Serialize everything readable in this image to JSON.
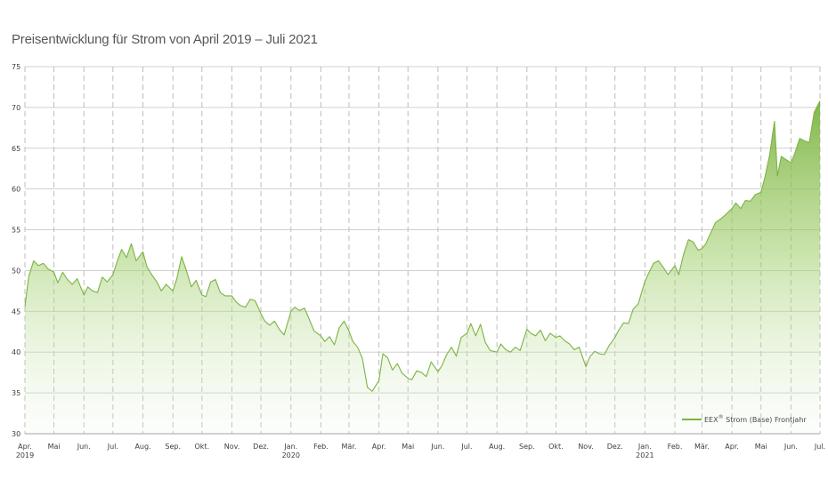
{
  "chart_data": {
    "type": "area",
    "title": "Preisentwicklung für Strom von April 2019 – Juli 2021",
    "ylim": [
      30,
      75
    ],
    "yticks": [
      30,
      35,
      40,
      45,
      50,
      55,
      60,
      65,
      70,
      75
    ],
    "x_range": [
      "2019-04",
      "2021-07"
    ],
    "xticks": [
      {
        "label": "Apr.",
        "year": "2019"
      },
      {
        "label": "Mai",
        "year": ""
      },
      {
        "label": "Jun.",
        "year": ""
      },
      {
        "label": "Jul.",
        "year": ""
      },
      {
        "label": "Aug.",
        "year": ""
      },
      {
        "label": "Sep.",
        "year": ""
      },
      {
        "label": "Okt.",
        "year": ""
      },
      {
        "label": "Nov.",
        "year": ""
      },
      {
        "label": "Dez.",
        "year": ""
      },
      {
        "label": "Jan.",
        "year": "2020"
      },
      {
        "label": "Feb.",
        "year": ""
      },
      {
        "label": "Mär.",
        "year": ""
      },
      {
        "label": "Apr.",
        "year": ""
      },
      {
        "label": "Mai",
        "year": ""
      },
      {
        "label": "Jun.",
        "year": ""
      },
      {
        "label": "Jul.",
        "year": ""
      },
      {
        "label": "Aug.",
        "year": ""
      },
      {
        "label": "Sep.",
        "year": ""
      },
      {
        "label": "Okt.",
        "year": ""
      },
      {
        "label": "Nov.",
        "year": ""
      },
      {
        "label": "Dez.",
        "year": ""
      },
      {
        "label": "Jan.",
        "year": "2021"
      },
      {
        "label": "Feb.",
        "year": ""
      },
      {
        "label": "Mär.",
        "year": ""
      },
      {
        "label": "Apr.",
        "year": ""
      },
      {
        "label": "Mai",
        "year": ""
      },
      {
        "label": "Jun.",
        "year": ""
      },
      {
        "label": "Jul.",
        "year": ""
      }
    ],
    "grid": true,
    "legend_position": "bottom-right",
    "series": [
      {
        "name": "EEX® Strom (Base) Frontjahr",
        "color": "#7cb342",
        "points": [
          [
            "2019-04-01",
            45.6
          ],
          [
            "2019-04-05",
            49.3
          ],
          [
            "2019-04-10",
            51.2
          ],
          [
            "2019-04-15",
            50.6
          ],
          [
            "2019-04-20",
            50.9
          ],
          [
            "2019-04-25",
            50.2
          ],
          [
            "2019-05-01",
            49.8
          ],
          [
            "2019-05-05",
            48.5
          ],
          [
            "2019-05-10",
            49.8
          ],
          [
            "2019-05-15",
            48.9
          ],
          [
            "2019-05-20",
            48.3
          ],
          [
            "2019-05-25",
            49.0
          ],
          [
            "2019-06-01",
            47.0
          ],
          [
            "2019-06-05",
            48.0
          ],
          [
            "2019-06-10",
            47.5
          ],
          [
            "2019-06-15",
            47.3
          ],
          [
            "2019-06-20",
            49.2
          ],
          [
            "2019-06-25",
            48.6
          ],
          [
            "2019-07-01",
            49.5
          ],
          [
            "2019-07-05",
            51.0
          ],
          [
            "2019-07-10",
            52.6
          ],
          [
            "2019-07-15",
            51.6
          ],
          [
            "2019-07-20",
            53.3
          ],
          [
            "2019-07-25",
            51.2
          ],
          [
            "2019-08-01",
            52.3
          ],
          [
            "2019-08-05",
            50.5
          ],
          [
            "2019-08-10",
            49.5
          ],
          [
            "2019-08-15",
            48.7
          ],
          [
            "2019-08-20",
            47.5
          ],
          [
            "2019-08-25",
            48.3
          ],
          [
            "2019-09-01",
            47.5
          ],
          [
            "2019-09-05",
            49.0
          ],
          [
            "2019-09-10",
            51.7
          ],
          [
            "2019-09-15",
            50.0
          ],
          [
            "2019-09-20",
            48.0
          ],
          [
            "2019-09-25",
            48.8
          ],
          [
            "2019-10-01",
            47.0
          ],
          [
            "2019-10-05",
            46.8
          ],
          [
            "2019-10-10",
            48.6
          ],
          [
            "2019-10-15",
            48.9
          ],
          [
            "2019-10-20",
            47.3
          ],
          [
            "2019-10-25",
            46.9
          ],
          [
            "2019-11-01",
            46.9
          ],
          [
            "2019-11-05",
            46.2
          ],
          [
            "2019-11-10",
            45.7
          ],
          [
            "2019-11-15",
            45.5
          ],
          [
            "2019-11-20",
            46.5
          ],
          [
            "2019-11-25",
            46.3
          ],
          [
            "2019-12-01",
            44.7
          ],
          [
            "2019-12-05",
            43.8
          ],
          [
            "2019-12-10",
            43.3
          ],
          [
            "2019-12-15",
            43.8
          ],
          [
            "2019-12-20",
            42.8
          ],
          [
            "2019-12-25",
            42.1
          ],
          [
            "2020-01-01",
            45.0
          ],
          [
            "2020-01-05",
            45.5
          ],
          [
            "2020-01-10",
            45.1
          ],
          [
            "2020-01-15",
            45.4
          ],
          [
            "2020-01-20",
            44.0
          ],
          [
            "2020-01-25",
            42.6
          ],
          [
            "2020-02-01",
            42.0
          ],
          [
            "2020-02-05",
            41.3
          ],
          [
            "2020-02-10",
            41.9
          ],
          [
            "2020-02-15",
            40.9
          ],
          [
            "2020-02-20",
            43.0
          ],
          [
            "2020-02-25",
            43.8
          ],
          [
            "2020-03-01",
            42.6
          ],
          [
            "2020-03-05",
            41.3
          ],
          [
            "2020-03-10",
            40.6
          ],
          [
            "2020-03-15",
            39.2
          ],
          [
            "2020-03-20",
            35.7
          ],
          [
            "2020-03-25",
            35.2
          ],
          [
            "2020-04-01",
            36.5
          ],
          [
            "2020-04-05",
            39.8
          ],
          [
            "2020-04-10",
            39.3
          ],
          [
            "2020-04-15",
            37.8
          ],
          [
            "2020-04-20",
            38.6
          ],
          [
            "2020-04-25",
            37.4
          ],
          [
            "2020-05-01",
            36.8
          ],
          [
            "2020-05-05",
            36.6
          ],
          [
            "2020-05-10",
            37.7
          ],
          [
            "2020-05-15",
            37.5
          ],
          [
            "2020-05-20",
            37.0
          ],
          [
            "2020-05-25",
            38.8
          ],
          [
            "2020-06-01",
            37.6
          ],
          [
            "2020-06-05",
            38.3
          ],
          [
            "2020-06-10",
            39.7
          ],
          [
            "2020-06-15",
            40.6
          ],
          [
            "2020-06-20",
            39.5
          ],
          [
            "2020-06-25",
            41.8
          ],
          [
            "2020-07-01",
            42.3
          ],
          [
            "2020-07-05",
            43.5
          ],
          [
            "2020-07-10",
            42.0
          ],
          [
            "2020-07-15",
            43.4
          ],
          [
            "2020-07-20",
            41.2
          ],
          [
            "2020-07-25",
            40.2
          ],
          [
            "2020-08-01",
            40.0
          ],
          [
            "2020-08-05",
            41.0
          ],
          [
            "2020-08-10",
            40.3
          ],
          [
            "2020-08-15",
            40.0
          ],
          [
            "2020-08-20",
            40.6
          ],
          [
            "2020-08-25",
            40.2
          ],
          [
            "2020-09-01",
            42.8
          ],
          [
            "2020-09-05",
            42.3
          ],
          [
            "2020-09-10",
            42.0
          ],
          [
            "2020-09-15",
            42.7
          ],
          [
            "2020-09-20",
            41.4
          ],
          [
            "2020-09-25",
            42.3
          ],
          [
            "2020-10-01",
            41.8
          ],
          [
            "2020-10-05",
            42.0
          ],
          [
            "2020-10-10",
            41.4
          ],
          [
            "2020-10-15",
            41.0
          ],
          [
            "2020-10-20",
            40.3
          ],
          [
            "2020-10-25",
            40.6
          ],
          [
            "2020-11-01",
            38.2
          ],
          [
            "2020-11-05",
            39.4
          ],
          [
            "2020-11-10",
            40.1
          ],
          [
            "2020-11-15",
            39.8
          ],
          [
            "2020-11-20",
            39.7
          ],
          [
            "2020-11-25",
            40.8
          ],
          [
            "2020-12-01",
            41.8
          ],
          [
            "2020-12-05",
            42.7
          ],
          [
            "2020-12-10",
            43.6
          ],
          [
            "2020-12-15",
            43.5
          ],
          [
            "2020-12-20",
            45.3
          ],
          [
            "2020-12-25",
            45.9
          ],
          [
            "2021-01-01",
            48.7
          ],
          [
            "2021-01-05",
            49.7
          ],
          [
            "2021-01-10",
            50.9
          ],
          [
            "2021-01-15",
            51.2
          ],
          [
            "2021-01-20",
            50.4
          ],
          [
            "2021-01-25",
            49.5
          ],
          [
            "2021-02-01",
            50.6
          ],
          [
            "2021-02-05",
            49.5
          ],
          [
            "2021-02-10",
            52.0
          ],
          [
            "2021-02-15",
            53.8
          ],
          [
            "2021-02-20",
            53.5
          ],
          [
            "2021-02-25",
            52.5
          ],
          [
            "2021-03-01",
            52.7
          ],
          [
            "2021-03-05",
            53.3
          ],
          [
            "2021-03-10",
            54.6
          ],
          [
            "2021-03-15",
            55.9
          ],
          [
            "2021-03-20",
            56.3
          ],
          [
            "2021-03-25",
            56.8
          ],
          [
            "2021-04-01",
            57.6
          ],
          [
            "2021-04-05",
            58.3
          ],
          [
            "2021-04-10",
            57.6
          ],
          [
            "2021-04-15",
            58.6
          ],
          [
            "2021-04-20",
            58.5
          ],
          [
            "2021-04-25",
            59.3
          ],
          [
            "2021-05-01",
            59.6
          ],
          [
            "2021-05-05",
            61.4
          ],
          [
            "2021-05-10",
            64.2
          ],
          [
            "2021-05-15",
            68.3
          ],
          [
            "2021-05-18",
            61.6
          ],
          [
            "2021-05-22",
            64.0
          ],
          [
            "2021-06-01",
            63.2
          ],
          [
            "2021-06-05",
            64.4
          ],
          [
            "2021-06-10",
            66.2
          ],
          [
            "2021-06-15",
            65.9
          ],
          [
            "2021-06-20",
            65.7
          ],
          [
            "2021-06-25",
            69.4
          ],
          [
            "2021-07-01",
            70.8
          ]
        ]
      }
    ]
  }
}
